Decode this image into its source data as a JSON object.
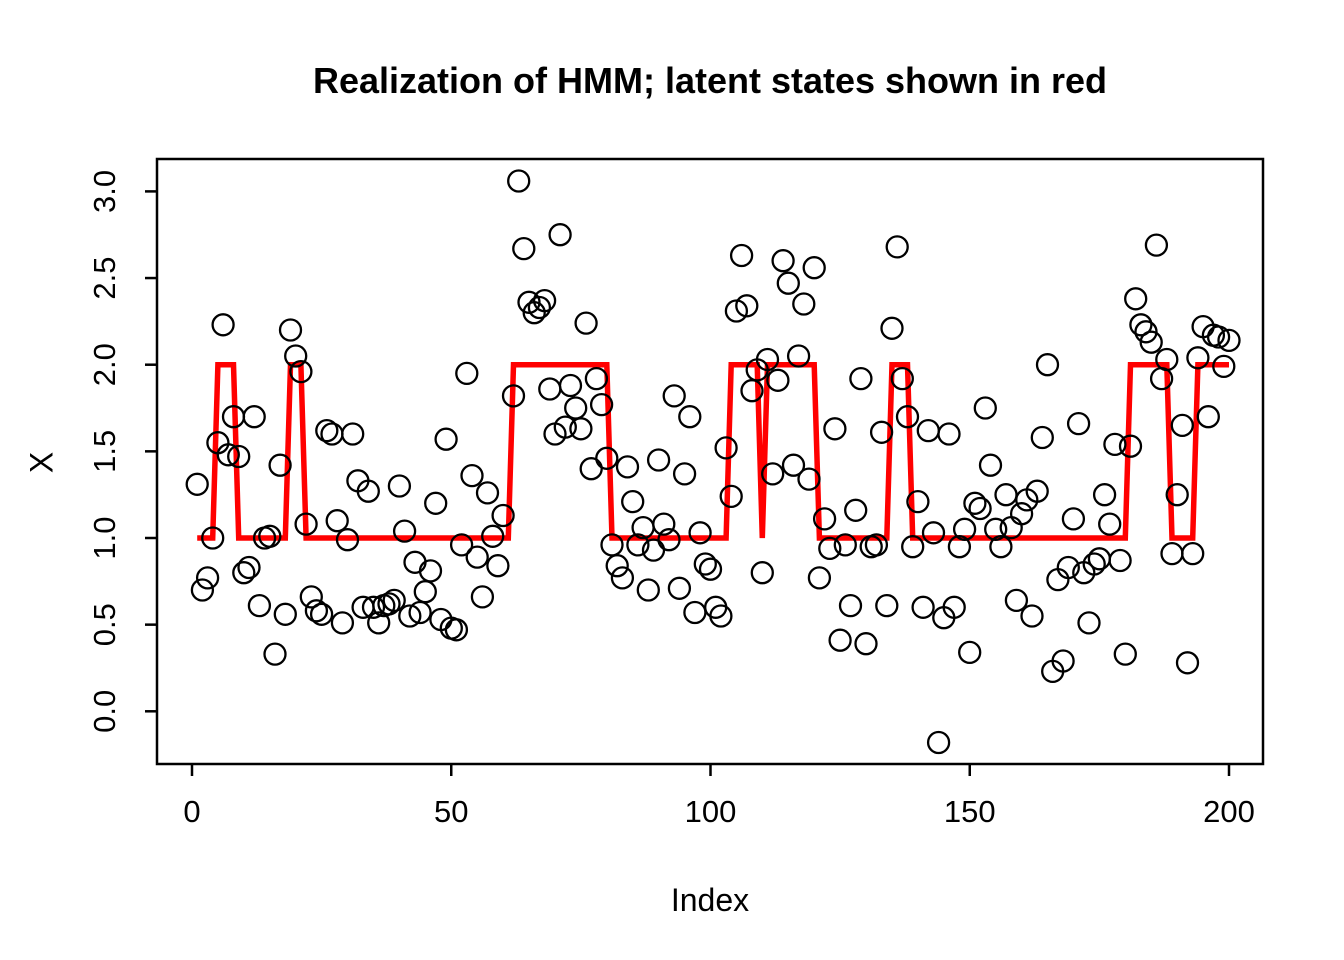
{
  "chart_data": {
    "type": "scatter",
    "title": "Realization of HMM; latent states shown in red",
    "xlabel": "Index",
    "ylabel": "X",
    "xlim": [
      0,
      200
    ],
    "ylim": [
      -0.2,
      3.1
    ],
    "x_ticks": [
      0,
      50,
      100,
      150,
      200
    ],
    "x_tick_labels": [
      "0",
      "50",
      "100",
      "150",
      "200"
    ],
    "y_ticks": [
      0.0,
      0.5,
      1.0,
      1.5,
      2.0,
      2.5,
      3.0
    ],
    "y_tick_labels": [
      "0.0",
      "0.5",
      "1.0",
      "1.5",
      "2.0",
      "2.5",
      "3.0"
    ],
    "grid": false,
    "legend": "none",
    "point_style": "open-circle",
    "point_color": "#000000",
    "latent_line_color": "#FF0000",
    "latent_state_levels": [
      1,
      2
    ],
    "latent_state_segments": [
      [
        1,
        4,
        1
      ],
      [
        5,
        8,
        2
      ],
      [
        9,
        18,
        1
      ],
      [
        19,
        21,
        2
      ],
      [
        22,
        61,
        1
      ],
      [
        62,
        80,
        2
      ],
      [
        81,
        103,
        1
      ],
      [
        104,
        109,
        2
      ],
      [
        110,
        110,
        1
      ],
      [
        111,
        120,
        2
      ],
      [
        121,
        134,
        1
      ],
      [
        135,
        138,
        2
      ],
      [
        139,
        180,
        1
      ],
      [
        181,
        188,
        2
      ],
      [
        189,
        193,
        1
      ],
      [
        194,
        200,
        2
      ]
    ],
    "points": [
      [
        1,
        1.31
      ],
      [
        2,
        0.7
      ],
      [
        3,
        0.77
      ],
      [
        4,
        1.0
      ],
      [
        5,
        1.55
      ],
      [
        6,
        2.23
      ],
      [
        7,
        1.48
      ],
      [
        8,
        1.7
      ],
      [
        9,
        1.47
      ],
      [
        10,
        0.8
      ],
      [
        11,
        0.83
      ],
      [
        12,
        1.7
      ],
      [
        13,
        0.61
      ],
      [
        14,
        1.0
      ],
      [
        15,
        1.01
      ],
      [
        16,
        0.33
      ],
      [
        17,
        1.42
      ],
      [
        18,
        0.56
      ],
      [
        19,
        2.2
      ],
      [
        20,
        2.05
      ],
      [
        21,
        1.96
      ],
      [
        22,
        1.08
      ],
      [
        23,
        0.66
      ],
      [
        24,
        0.58
      ],
      [
        25,
        0.56
      ],
      [
        26,
        1.62
      ],
      [
        27,
        1.6
      ],
      [
        28,
        1.1
      ],
      [
        29,
        0.51
      ],
      [
        30,
        0.99
      ],
      [
        31,
        1.6
      ],
      [
        32,
        1.33
      ],
      [
        33,
        0.6
      ],
      [
        34,
        1.27
      ],
      [
        35,
        0.6
      ],
      [
        36,
        0.51
      ],
      [
        37,
        0.61
      ],
      [
        38,
        0.62
      ],
      [
        39,
        0.64
      ],
      [
        40,
        1.3
      ],
      [
        41,
        1.04
      ],
      [
        42,
        0.55
      ],
      [
        43,
        0.86
      ],
      [
        44,
        0.57
      ],
      [
        45,
        0.69
      ],
      [
        46,
        0.81
      ],
      [
        47,
        1.2
      ],
      [
        48,
        0.53
      ],
      [
        49,
        1.57
      ],
      [
        50,
        0.48
      ],
      [
        51,
        0.47
      ],
      [
        52,
        0.96
      ],
      [
        53,
        1.95
      ],
      [
        54,
        1.36
      ],
      [
        55,
        0.89
      ],
      [
        56,
        0.66
      ],
      [
        57,
        1.26
      ],
      [
        58,
        1.01
      ],
      [
        59,
        0.84
      ],
      [
        60,
        1.13
      ],
      [
        62,
        1.82
      ],
      [
        63,
        3.06
      ],
      [
        64,
        2.67
      ],
      [
        65,
        2.36
      ],
      [
        66,
        2.3
      ],
      [
        67,
        2.33
      ],
      [
        68,
        2.37
      ],
      [
        69,
        1.86
      ],
      [
        70,
        1.6
      ],
      [
        71,
        2.75
      ],
      [
        72,
        1.64
      ],
      [
        73,
        1.88
      ],
      [
        74,
        1.75
      ],
      [
        75,
        1.63
      ],
      [
        76,
        2.24
      ],
      [
        77,
        1.4
      ],
      [
        78,
        1.92
      ],
      [
        79,
        1.77
      ],
      [
        80,
        1.46
      ],
      [
        81,
        0.96
      ],
      [
        82,
        0.84
      ],
      [
        83,
        0.77
      ],
      [
        84,
        1.41
      ],
      [
        85,
        1.21
      ],
      [
        86,
        0.96
      ],
      [
        87,
        1.06
      ],
      [
        88,
        0.7
      ],
      [
        89,
        0.93
      ],
      [
        90,
        1.45
      ],
      [
        91,
        1.08
      ],
      [
        92,
        0.99
      ],
      [
        93,
        1.82
      ],
      [
        94,
        0.71
      ],
      [
        95,
        1.37
      ],
      [
        96,
        1.7
      ],
      [
        97,
        0.57
      ],
      [
        98,
        1.03
      ],
      [
        99,
        0.85
      ],
      [
        100,
        0.82
      ],
      [
        101,
        0.6
      ],
      [
        102,
        0.55
      ],
      [
        103,
        1.52
      ],
      [
        104,
        1.24
      ],
      [
        105,
        2.31
      ],
      [
        106,
        2.63
      ],
      [
        107,
        2.34
      ],
      [
        108,
        1.85
      ],
      [
        109,
        1.97
      ],
      [
        110,
        0.8
      ],
      [
        111,
        2.03
      ],
      [
        112,
        1.37
      ],
      [
        113,
        1.91
      ],
      [
        114,
        2.6
      ],
      [
        115,
        2.47
      ],
      [
        116,
        1.42
      ],
      [
        117,
        2.05
      ],
      [
        118,
        2.35
      ],
      [
        119,
        1.34
      ],
      [
        120,
        2.56
      ],
      [
        121,
        0.77
      ],
      [
        122,
        1.11
      ],
      [
        123,
        0.94
      ],
      [
        124,
        1.63
      ],
      [
        125,
        0.41
      ],
      [
        126,
        0.96
      ],
      [
        127,
        0.61
      ],
      [
        128,
        1.16
      ],
      [
        129,
        1.92
      ],
      [
        130,
        0.39
      ],
      [
        131,
        0.95
      ],
      [
        132,
        0.96
      ],
      [
        133,
        1.61
      ],
      [
        134,
        0.61
      ],
      [
        135,
        2.21
      ],
      [
        136,
        2.68
      ],
      [
        137,
        1.92
      ],
      [
        138,
        1.7
      ],
      [
        139,
        0.95
      ],
      [
        140,
        1.21
      ],
      [
        141,
        0.6
      ],
      [
        142,
        1.62
      ],
      [
        143,
        1.03
      ],
      [
        144,
        -0.18
      ],
      [
        145,
        0.54
      ],
      [
        146,
        1.6
      ],
      [
        147,
        0.6
      ],
      [
        148,
        0.95
      ],
      [
        149,
        1.05
      ],
      [
        150,
        0.34
      ],
      [
        151,
        1.2
      ],
      [
        152,
        1.17
      ],
      [
        153,
        1.75
      ],
      [
        154,
        1.42
      ],
      [
        155,
        1.05
      ],
      [
        156,
        0.95
      ],
      [
        157,
        1.25
      ],
      [
        158,
        1.06
      ],
      [
        159,
        0.64
      ],
      [
        160,
        1.14
      ],
      [
        161,
        1.22
      ],
      [
        162,
        0.55
      ],
      [
        163,
        1.27
      ],
      [
        164,
        1.58
      ],
      [
        165,
        2.0
      ],
      [
        166,
        0.23
      ],
      [
        167,
        0.76
      ],
      [
        168,
        0.29
      ],
      [
        169,
        0.83
      ],
      [
        170,
        1.11
      ],
      [
        171,
        1.66
      ],
      [
        172,
        0.8
      ],
      [
        173,
        0.51
      ],
      [
        174,
        0.85
      ],
      [
        175,
        0.88
      ],
      [
        176,
        1.25
      ],
      [
        177,
        1.08
      ],
      [
        178,
        1.54
      ],
      [
        179,
        0.87
      ],
      [
        180,
        0.33
      ],
      [
        181,
        1.53
      ],
      [
        182,
        2.38
      ],
      [
        183,
        2.23
      ],
      [
        184,
        2.19
      ],
      [
        185,
        2.13
      ],
      [
        186,
        2.69
      ],
      [
        187,
        1.92
      ],
      [
        188,
        2.03
      ],
      [
        189,
        0.91
      ],
      [
        190,
        1.25
      ],
      [
        191,
        1.65
      ],
      [
        192,
        0.28
      ],
      [
        193,
        0.91
      ],
      [
        194,
        2.04
      ],
      [
        195,
        2.22
      ],
      [
        196,
        1.7
      ],
      [
        197,
        2.17
      ],
      [
        198,
        2.16
      ],
      [
        199,
        1.99
      ],
      [
        200,
        2.14
      ]
    ]
  }
}
